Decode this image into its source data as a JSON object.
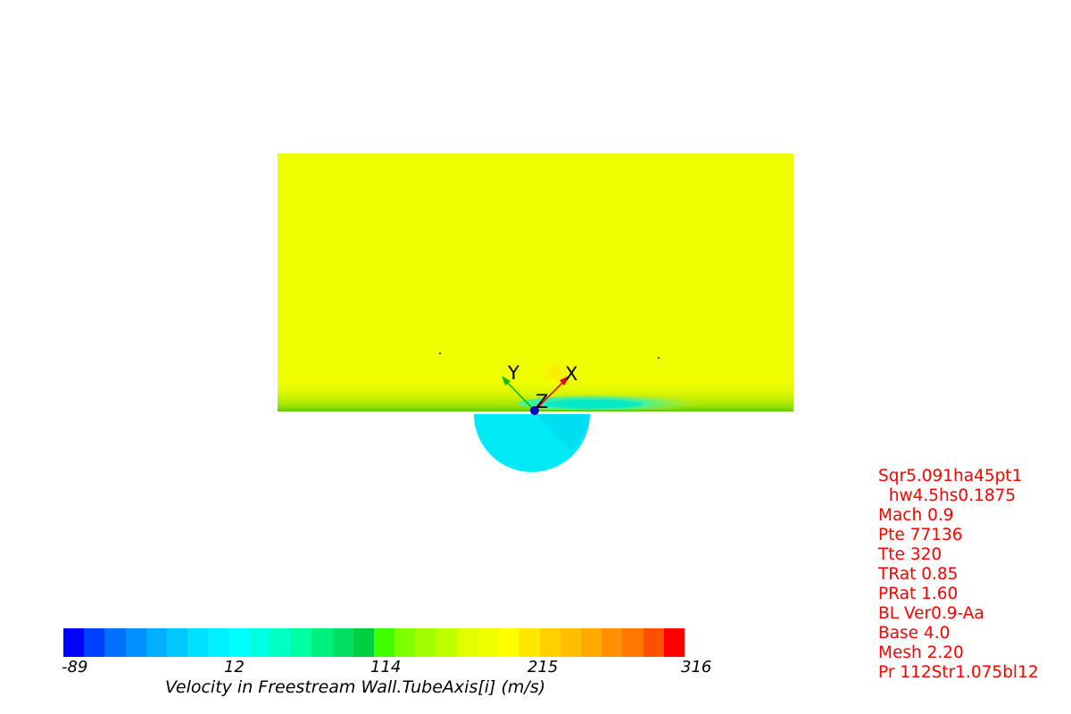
{
  "viewport": {
    "axes_labels": {
      "x": "X",
      "y": "Y",
      "z": "Z"
    },
    "axis_colors": {
      "x": "#e00000",
      "y": "#00c000",
      "z": "#0000cc"
    }
  },
  "colorbar": {
    "title": "Velocity in Freestream Wall.TubeAxis[i] (m/s)",
    "tick_labels": [
      "-89",
      "12",
      "114",
      "215",
      "316"
    ],
    "min": -89,
    "max": 316,
    "colors": [
      "#0000ff",
      "#0040ff",
      "#0070ff",
      "#0090ff",
      "#00b0ff",
      "#00c8ff",
      "#00e0ff",
      "#00f0ff",
      "#00ffff",
      "#00ffe0",
      "#00ffc0",
      "#00ffa0",
      "#00f080",
      "#00e060",
      "#00d040",
      "#40ff00",
      "#80ff00",
      "#a0ff00",
      "#c0ff00",
      "#e0ff00",
      "#f0ff00",
      "#ffff00",
      "#ffe800",
      "#ffd000",
      "#ffc000",
      "#ffa800",
      "#ff9000",
      "#ff7800",
      "#ff5000",
      "#ff0000"
    ]
  },
  "contour_colors": {
    "freestream": "#f0ff00",
    "wall_band_1": "#d0f000",
    "wall_band_2": "#a0e000",
    "wall_edge": "#60d000",
    "wake": "#00f0c0",
    "cavity": "#00eaf5",
    "cavity_shade": "#00d0f0",
    "hotspot": "#ffe000"
  },
  "params": {
    "lines": [
      "Sqr5.091ha45pt1",
      "  hw4.5hs0.1875",
      "Mach 0.9",
      "Pte 77136",
      "Tte 320",
      "TRat 0.85",
      "PRat 1.60",
      "BL Ver0.9-Aa",
      "Base 4.0",
      "Mesh 2.20",
      "Pr 112Str1.075bl12"
    ]
  }
}
